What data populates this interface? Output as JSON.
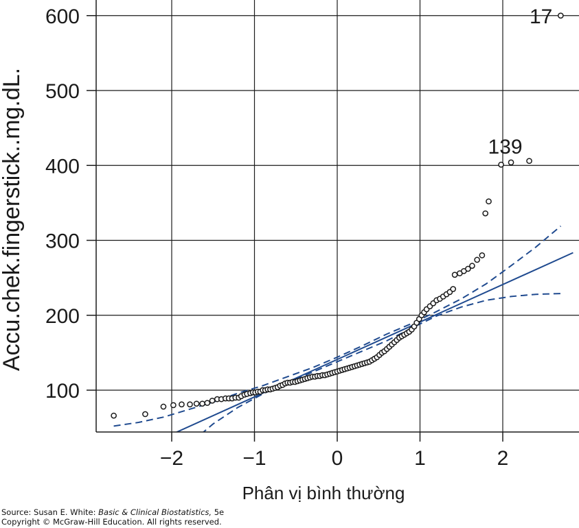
{
  "chart_data": {
    "type": "scatter",
    "title": "",
    "xlabel": "Phân vị bình thường",
    "ylabel": "Accu.chek.fingerstick..mg.dL.",
    "xlim": [
      -2.85,
      2.85
    ],
    "ylim": [
      45,
      620
    ],
    "x_ticks": [
      -2,
      -1,
      0,
      1,
      2
    ],
    "x_tick_labels": [
      "−2",
      "−1",
      "0",
      "1",
      "2"
    ],
    "y_ticks": [
      100,
      200,
      300,
      400,
      500,
      600
    ],
    "y_tick_labels": [
      "100",
      "200",
      "300",
      "400",
      "500",
      "600"
    ],
    "grid": true,
    "legend": "none",
    "colors": {
      "points": "#1a1a1a",
      "reference": "#1f4a8f",
      "envelope": "#1f4a8f",
      "grid": "#1a1a1a"
    },
    "reference_line": {
      "intercept": 141,
      "slope": 50
    },
    "confidence_envelope": {
      "x": [
        -2.7,
        -2.4,
        -2.1,
        -1.8,
        -1.5,
        -1.2,
        -0.9,
        -0.6,
        -0.3,
        0,
        0.3,
        0.6,
        0.9,
        1.2,
        1.5,
        1.8,
        2.1,
        2.4,
        2.7
      ],
      "upper": [
        52,
        57,
        64,
        74,
        84,
        96,
        106,
        118,
        130,
        144,
        159,
        175,
        189,
        205,
        222,
        242,
        266,
        291,
        319
      ],
      "lower": [
        -48,
        -20,
        3,
        27,
        55,
        77,
        95,
        110,
        124,
        138,
        152,
        166,
        183,
        199,
        211,
        220,
        225,
        228,
        229
      ]
    },
    "annotations": [
      {
        "label": "17",
        "x": 2.7,
        "y": 600
      },
      {
        "label": "139",
        "x": 1.98,
        "y": 401
      }
    ],
    "points": [
      [
        -2.7,
        66
      ],
      [
        -2.32,
        68
      ],
      [
        -2.1,
        78
      ],
      [
        -1.98,
        80
      ],
      [
        -1.88,
        81
      ],
      [
        -1.78,
        81
      ],
      [
        -1.7,
        82
      ],
      [
        -1.63,
        82
      ],
      [
        -1.57,
        83
      ],
      [
        -1.51,
        86
      ],
      [
        -1.45,
        88
      ],
      [
        -1.4,
        88
      ],
      [
        -1.35,
        89
      ],
      [
        -1.31,
        89
      ],
      [
        -1.27,
        89
      ],
      [
        -1.23,
        90
      ],
      [
        -1.19,
        90
      ],
      [
        -1.16,
        92
      ],
      [
        -1.12,
        94
      ],
      [
        -1.09,
        95
      ],
      [
        -1.05,
        96
      ],
      [
        -1.02,
        97
      ],
      [
        -0.99,
        97
      ],
      [
        -0.96,
        98
      ],
      [
        -0.93,
        98
      ],
      [
        -0.9,
        100
      ],
      [
        -0.87,
        100
      ],
      [
        -0.84,
        101
      ],
      [
        -0.81,
        101
      ],
      [
        -0.78,
        102
      ],
      [
        -0.75,
        103
      ],
      [
        -0.72,
        104
      ],
      [
        -0.69,
        106
      ],
      [
        -0.66,
        107
      ],
      [
        -0.63,
        109
      ],
      [
        -0.6,
        110
      ],
      [
        -0.57,
        110
      ],
      [
        -0.54,
        111
      ],
      [
        -0.51,
        111
      ],
      [
        -0.48,
        112
      ],
      [
        -0.45,
        113
      ],
      [
        -0.42,
        114
      ],
      [
        -0.39,
        115
      ],
      [
        -0.36,
        116
      ],
      [
        -0.33,
        117
      ],
      [
        -0.3,
        118
      ],
      [
        -0.27,
        118
      ],
      [
        -0.24,
        119
      ],
      [
        -0.21,
        119
      ],
      [
        -0.18,
        120
      ],
      [
        -0.15,
        120
      ],
      [
        -0.12,
        121
      ],
      [
        -0.09,
        122
      ],
      [
        -0.06,
        123
      ],
      [
        -0.03,
        124
      ],
      [
        0.0,
        125
      ],
      [
        0.03,
        126
      ],
      [
        0.06,
        127
      ],
      [
        0.09,
        128
      ],
      [
        0.12,
        129
      ],
      [
        0.15,
        130
      ],
      [
        0.18,
        131
      ],
      [
        0.21,
        132
      ],
      [
        0.24,
        133
      ],
      [
        0.27,
        134
      ],
      [
        0.3,
        135
      ],
      [
        0.33,
        136
      ],
      [
        0.36,
        137
      ],
      [
        0.39,
        138
      ],
      [
        0.42,
        140
      ],
      [
        0.45,
        142
      ],
      [
        0.48,
        144
      ],
      [
        0.51,
        147
      ],
      [
        0.54,
        150
      ],
      [
        0.57,
        152
      ],
      [
        0.6,
        155
      ],
      [
        0.63,
        158
      ],
      [
        0.66,
        161
      ],
      [
        0.69,
        164
      ],
      [
        0.72,
        167
      ],
      [
        0.75,
        170
      ],
      [
        0.78,
        172
      ],
      [
        0.81,
        174
      ],
      [
        0.84,
        176
      ],
      [
        0.87,
        178
      ],
      [
        0.9,
        181
      ],
      [
        0.93,
        185
      ],
      [
        0.96,
        190
      ],
      [
        0.99,
        195
      ],
      [
        1.02,
        200
      ],
      [
        1.05,
        204
      ],
      [
        1.08,
        208
      ],
      [
        1.12,
        212
      ],
      [
        1.16,
        216
      ],
      [
        1.2,
        220
      ],
      [
        1.24,
        222
      ],
      [
        1.28,
        225
      ],
      [
        1.32,
        228
      ],
      [
        1.36,
        231
      ],
      [
        1.4,
        235
      ],
      [
        1.42,
        254
      ],
      [
        1.48,
        256
      ],
      [
        1.53,
        259
      ],
      [
        1.58,
        262
      ],
      [
        1.63,
        266
      ],
      [
        1.69,
        274
      ],
      [
        1.75,
        280
      ],
      [
        1.79,
        336
      ],
      [
        1.83,
        352
      ],
      [
        1.98,
        401
      ],
      [
        2.1,
        404
      ],
      [
        2.32,
        406
      ],
      [
        2.7,
        600
      ]
    ]
  },
  "source": {
    "prefix": "Source: Susan E. White: ",
    "book": "Basic & Clinical Biostatistics,",
    "edition": " 5e",
    "copyright": "Copyright © McGraw-Hill Education. All rights reserved."
  }
}
